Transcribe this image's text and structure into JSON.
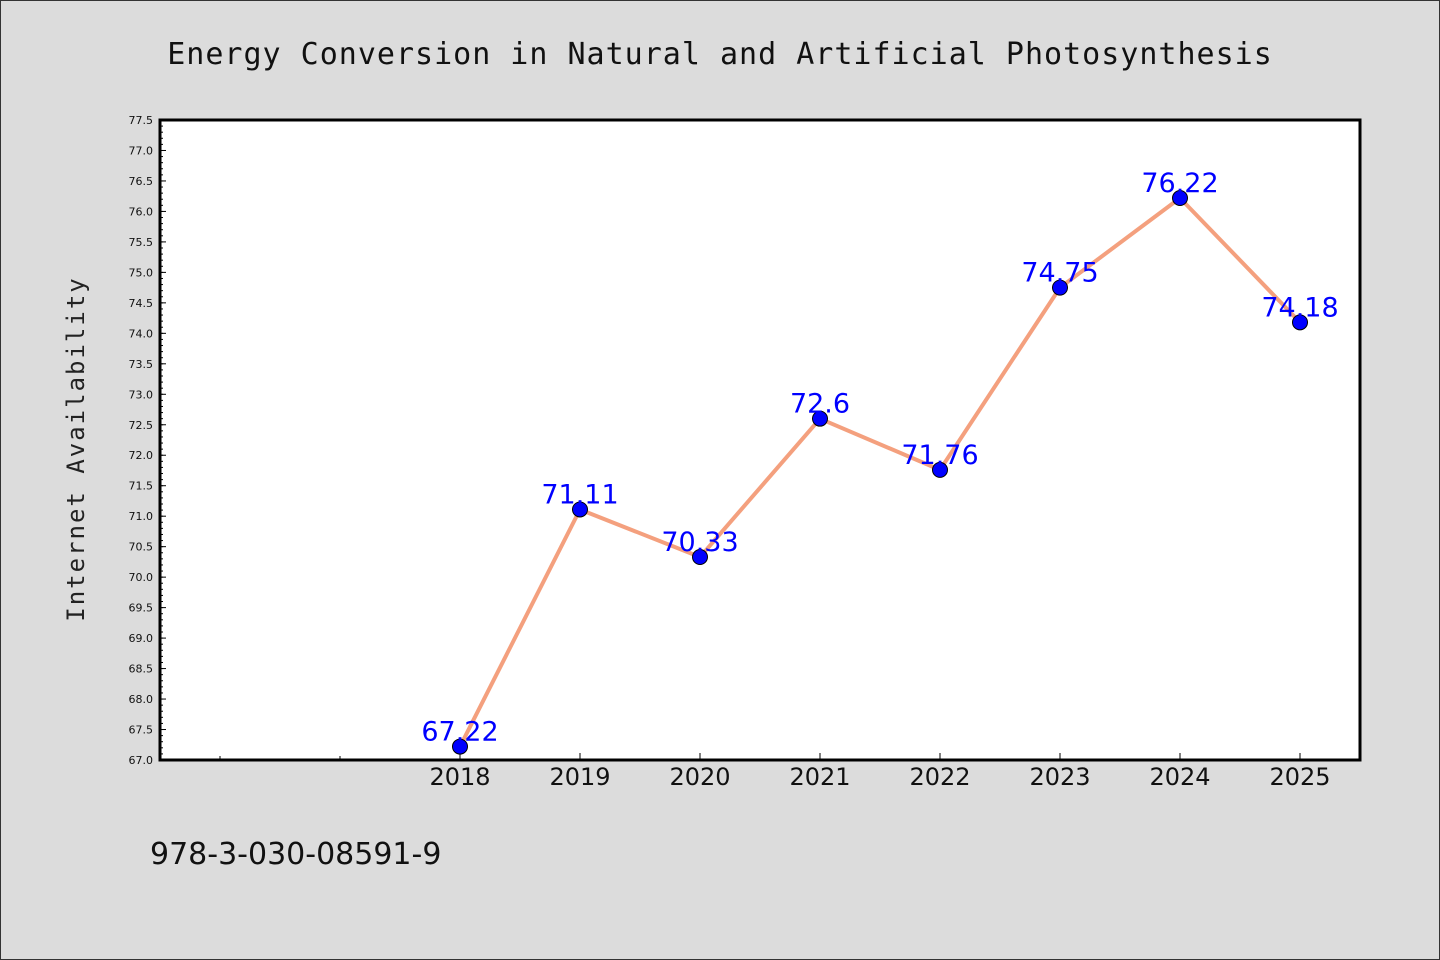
{
  "chart_data": {
    "type": "line",
    "title": "Energy Conversion in Natural and Artificial Photosynthesis",
    "xlabel": "",
    "ylabel": "Internet Availability",
    "categories": [
      "2018",
      "2019",
      "2020",
      "2021",
      "2022",
      "2023",
      "2024",
      "2025"
    ],
    "series": [
      {
        "values": [
          67.22,
          71.11,
          70.33,
          72.6,
          71.76,
          74.75,
          76.22,
          74.18
        ]
      }
    ],
    "data_labels": [
      "67.22",
      "71.11",
      "70.33",
      "72.6",
      "71.76",
      "74.75",
      "76.22",
      "74.18"
    ],
    "ylim": [
      67.0,
      77.5
    ],
    "y_ticks": [
      "67.0",
      "67.5",
      "68.0",
      "68.5",
      "69.0",
      "69.5",
      "70.0",
      "70.5",
      "71.0",
      "71.5",
      "72.0",
      "72.5",
      "73.0",
      "73.5",
      "74.0",
      "74.5",
      "75.0",
      "75.5",
      "76.0",
      "76.5",
      "77.0",
      "77.5"
    ],
    "grid": false,
    "colors": {
      "line": "#f4a07e",
      "marker": "#0000ff",
      "label": "#0000ff",
      "background": "#dcdcdc",
      "plot_background": "#ffffff"
    }
  },
  "footer": {
    "isbn": "978-3-030-08591-9"
  }
}
